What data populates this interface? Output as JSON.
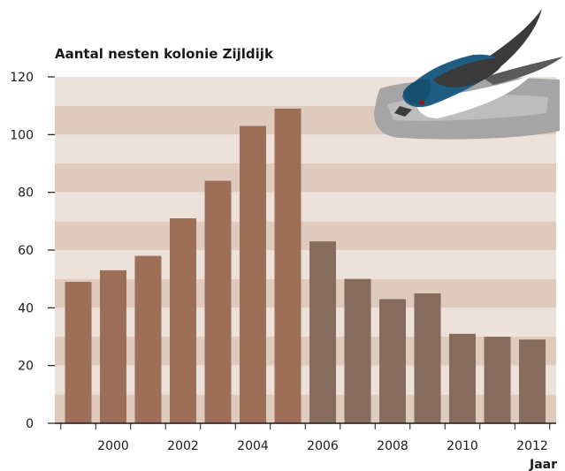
{
  "chart_data": {
    "type": "bar",
    "title": "Aantal nesten kolonie Zijldijk",
    "xlabel": "Jaar",
    "ylabel": "",
    "ylim": [
      0,
      120
    ],
    "yticks": [
      0,
      20,
      40,
      60,
      80,
      100,
      120
    ],
    "xticks": [
      "2000",
      "2002",
      "2004",
      "2006",
      "2008",
      "2010",
      "2012"
    ],
    "categories": [
      "1999",
      "2000",
      "2001",
      "2002",
      "2003",
      "2004",
      "2005",
      "2006",
      "2007",
      "2008",
      "2009",
      "2010",
      "2011",
      "2012"
    ],
    "values": [
      49,
      53,
      58,
      71,
      84,
      103,
      109,
      63,
      50,
      43,
      45,
      31,
      30,
      29
    ],
    "grid": "alternating horizontal bands",
    "colors": {
      "bar_early": "#9e6f58",
      "bar_late": "#876b5c",
      "band_dark": "#dfcbbd",
      "band_light": "#ede2da",
      "axis": "#1a1a1a"
    },
    "color_change_after": "2005"
  },
  "illustration": {
    "icon": "swallow-bird-icon"
  }
}
